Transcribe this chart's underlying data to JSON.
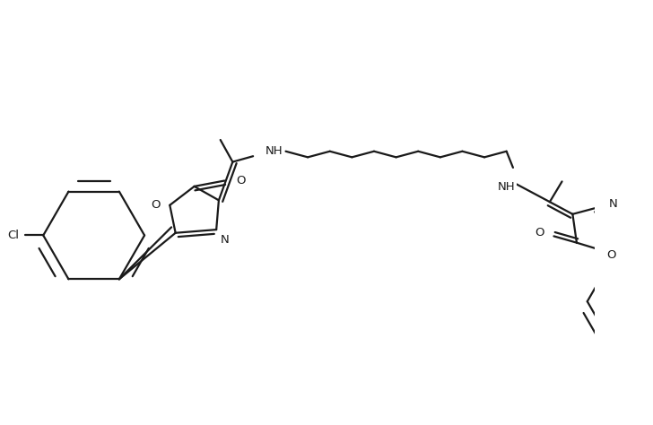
{
  "bg_color": "#ffffff",
  "line_color": "#1a1a1a",
  "line_width": 1.6,
  "font_size": 9.5,
  "figsize": [
    7.28,
    4.74
  ],
  "dpi": 100,
  "xlim": [
    0,
    728
  ],
  "ylim": [
    0,
    474
  ]
}
